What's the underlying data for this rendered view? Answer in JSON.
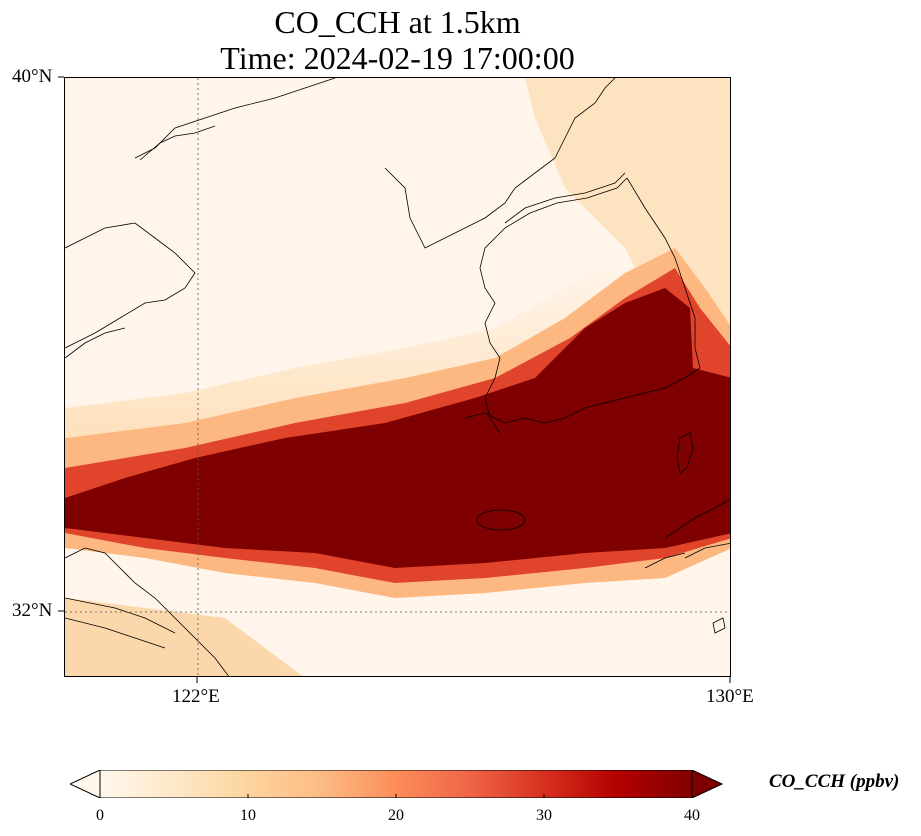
{
  "title": {
    "line1": "CO_CCH at 1.5km",
    "line2": "Time: 2024-02-19 17:00:00"
  },
  "axes": {
    "lat_ticks": [
      {
        "label": "40°N",
        "value": 40
      },
      {
        "label": "32°N",
        "value": 32
      }
    ],
    "lon_ticks": [
      {
        "label": "122°E",
        "value": 122
      },
      {
        "label": "130°E",
        "value": 130
      }
    ],
    "lon_range": [
      120,
      130
    ],
    "lat_range": [
      31,
      40
    ],
    "gridlines": "dotted"
  },
  "colorbar": {
    "label": "CO_CCH (ppbv)",
    "ticks": [
      "0",
      "10",
      "20",
      "30",
      "40"
    ],
    "range": [
      0,
      40
    ],
    "colormap": "OrRd",
    "extend": "both",
    "colors": [
      "#fff7ec",
      "#fee8c8",
      "#fdd49e",
      "#fdbb84",
      "#fc8d59",
      "#ef6548",
      "#d7301f",
      "#b30000",
      "#7f0000"
    ]
  }
}
